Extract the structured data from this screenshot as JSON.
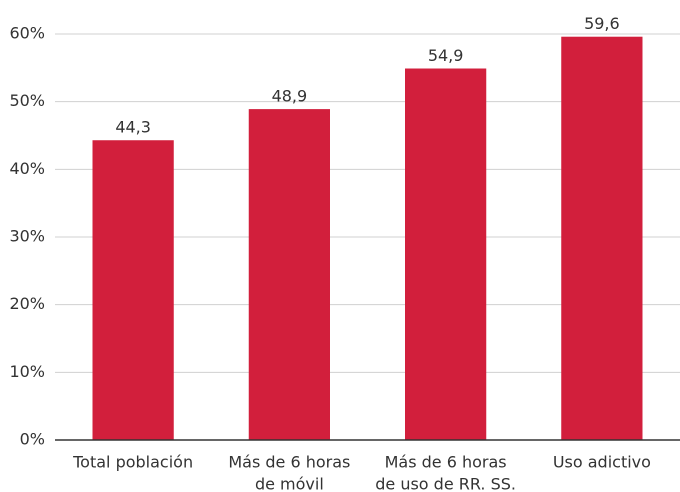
{
  "chart_data": {
    "type": "bar",
    "categories": [
      [
        "Total población"
      ],
      [
        "Más de 6 horas",
        "de móvil"
      ],
      [
        "Más de 6 horas",
        "de uso de RR. SS."
      ],
      [
        "Uso adictivo"
      ]
    ],
    "values": [
      44.3,
      48.9,
      54.9,
      59.6
    ],
    "value_labels": [
      "44,3",
      "48,9",
      "54,9",
      "59,6"
    ],
    "color": "#d21f3c",
    "ylim": [
      0,
      60
    ],
    "yticks": [
      {
        "value": 0,
        "label": "0%"
      },
      {
        "value": 10,
        "label": "10%"
      },
      {
        "value": 20,
        "label": "20%"
      },
      {
        "value": 30,
        "label": "30%"
      },
      {
        "value": 40,
        "label": "40%"
      },
      {
        "value": 50,
        "label": "50%"
      },
      {
        "value": 60,
        "label": "60%"
      }
    ],
    "grid": true
  }
}
